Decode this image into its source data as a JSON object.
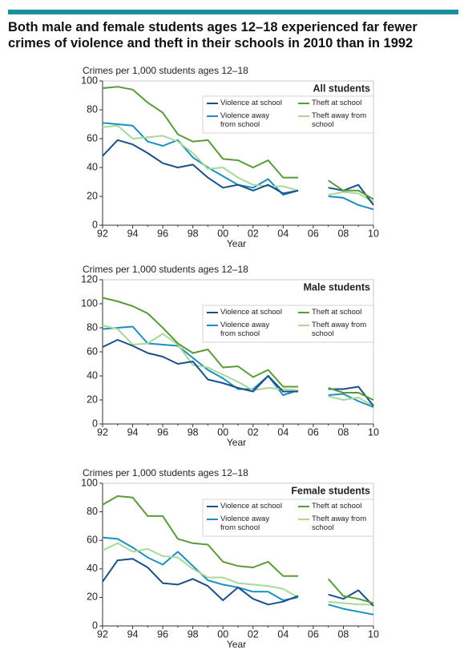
{
  "title": "Both male and female students ages 12–18 experienced far fewer crimes of violence and theft in their schools in 2010 than in 1992",
  "chart_data": [
    {
      "type": "line",
      "title": "All students",
      "ylabel": "Crimes per 1,000 students ages 12–18",
      "xlabel": "Year",
      "x": [
        1992,
        1993,
        1994,
        1995,
        1996,
        1997,
        1998,
        1999,
        2000,
        2001,
        2002,
        2003,
        2004,
        2005,
        2006,
        2007,
        2008,
        2009,
        2010
      ],
      "xlim": [
        1992,
        2010
      ],
      "xticks": [
        {
          "value": 1992,
          "label": "92"
        },
        {
          "value": 1994,
          "label": "94"
        },
        {
          "value": 1996,
          "label": "96"
        },
        {
          "value": 1998,
          "label": "98"
        },
        {
          "value": 2000,
          "label": "00"
        },
        {
          "value": 2002,
          "label": "02"
        },
        {
          "value": 2004,
          "label": "04"
        },
        {
          "value": 2006,
          "label": "06"
        },
        {
          "value": 2008,
          "label": "08"
        },
        {
          "value": 2010,
          "label": "10"
        }
      ],
      "ylim": [
        0,
        100
      ],
      "yticks": [
        0,
        20,
        40,
        60,
        80,
        100
      ],
      "grid": false,
      "series": [
        {
          "name": "Violence at school",
          "color": "#1b4f8a",
          "values": [
            48,
            59,
            56,
            50,
            43,
            40,
            42,
            33,
            26,
            28,
            24,
            28,
            22,
            24,
            null,
            26,
            24,
            28,
            14
          ]
        },
        {
          "name": "Theft at school",
          "color": "#5a9a3a",
          "values": [
            95,
            96,
            94,
            85,
            78,
            63,
            58,
            59,
            46,
            45,
            40,
            45,
            33,
            33,
            null,
            31,
            24,
            24,
            18
          ]
        },
        {
          "name": "Violence away from school",
          "color": "#1a8fc0",
          "values": [
            71,
            70,
            69,
            58,
            55,
            59,
            47,
            40,
            34,
            28,
            26,
            32,
            21,
            24,
            null,
            20,
            19,
            14,
            11
          ]
        },
        {
          "name": "Theft away from school",
          "color": "#a8d89a",
          "values": [
            68,
            69,
            60,
            61,
            62,
            58,
            50,
            39,
            40,
            33,
            28,
            27,
            27,
            24,
            null,
            21,
            23,
            22,
            16
          ]
        }
      ]
    },
    {
      "type": "line",
      "title": "Male students",
      "ylabel": "Crimes per 1,000 students ages 12–18",
      "xlabel": "Year",
      "x": [
        1992,
        1993,
        1994,
        1995,
        1996,
        1997,
        1998,
        1999,
        2000,
        2001,
        2002,
        2003,
        2004,
        2005,
        2006,
        2007,
        2008,
        2009,
        2010
      ],
      "xlim": [
        1992,
        2010
      ],
      "xticks": [
        {
          "value": 1992,
          "label": "92"
        },
        {
          "value": 1994,
          "label": "94"
        },
        {
          "value": 1996,
          "label": "96"
        },
        {
          "value": 1998,
          "label": "98"
        },
        {
          "value": 2000,
          "label": "00"
        },
        {
          "value": 2002,
          "label": "02"
        },
        {
          "value": 2004,
          "label": "04"
        },
        {
          "value": 2006,
          "label": "06"
        },
        {
          "value": 2008,
          "label": "08"
        },
        {
          "value": 2010,
          "label": "10"
        }
      ],
      "ylim": [
        0,
        120
      ],
      "yticks": [
        0,
        20,
        40,
        60,
        80,
        100,
        120
      ],
      "grid": false,
      "series": [
        {
          "name": "Violence at school",
          "color": "#1b4f8a",
          "values": [
            64,
            70,
            65,
            59,
            56,
            50,
            52,
            37,
            34,
            30,
            27,
            40,
            27,
            27,
            null,
            29,
            29,
            31,
            15
          ]
        },
        {
          "name": "Theft at school",
          "color": "#5a9a3a",
          "values": [
            105,
            102,
            98,
            92,
            80,
            67,
            59,
            62,
            47,
            48,
            39,
            45,
            31,
            31,
            null,
            30,
            26,
            26,
            20
          ]
        },
        {
          "name": "Violence away from school",
          "color": "#1a8fc0",
          "values": [
            79,
            80,
            81,
            67,
            66,
            65,
            55,
            45,
            38,
            29,
            29,
            40,
            24,
            28,
            null,
            24,
            25,
            19,
            14
          ]
        },
        {
          "name": "Theft away from school",
          "color": "#a8d89a",
          "values": [
            82,
            79,
            66,
            67,
            75,
            66,
            49,
            47,
            41,
            35,
            28,
            30,
            29,
            28,
            null,
            23,
            20,
            22,
            15
          ]
        }
      ]
    },
    {
      "type": "line",
      "title": "Female students",
      "ylabel": "Crimes per 1,000 students ages 12–18",
      "xlabel": "Year",
      "x": [
        1992,
        1993,
        1994,
        1995,
        1996,
        1997,
        1998,
        1999,
        2000,
        2001,
        2002,
        2003,
        2004,
        2005,
        2006,
        2007,
        2008,
        2009,
        2010
      ],
      "xlim": [
        1992,
        2010
      ],
      "xticks": [
        {
          "value": 1992,
          "label": "92"
        },
        {
          "value": 1994,
          "label": "94"
        },
        {
          "value": 1996,
          "label": "96"
        },
        {
          "value": 1998,
          "label": "98"
        },
        {
          "value": 2000,
          "label": "00"
        },
        {
          "value": 2002,
          "label": "02"
        },
        {
          "value": 2004,
          "label": "04"
        },
        {
          "value": 2006,
          "label": "06"
        },
        {
          "value": 2008,
          "label": "08"
        },
        {
          "value": 2010,
          "label": "10"
        }
      ],
      "ylim": [
        0,
        100
      ],
      "yticks": [
        0,
        20,
        40,
        60,
        80,
        100
      ],
      "grid": false,
      "series": [
        {
          "name": "Violence at school",
          "color": "#1b4f8a",
          "values": [
            31,
            46,
            47,
            41,
            30,
            29,
            33,
            28,
            18,
            27,
            19,
            15,
            17,
            21,
            null,
            22,
            19,
            25,
            14
          ]
        },
        {
          "name": "Theft at school",
          "color": "#5a9a3a",
          "values": [
            85,
            91,
            90,
            77,
            77,
            61,
            58,
            57,
            45,
            42,
            41,
            45,
            35,
            35,
            null,
            33,
            21,
            19,
            16
          ]
        },
        {
          "name": "Violence away from school",
          "color": "#1a8fc0",
          "values": [
            62,
            61,
            55,
            48,
            43,
            52,
            42,
            32,
            29,
            27,
            24,
            24,
            18,
            20,
            null,
            15,
            12,
            10,
            8
          ]
        },
        {
          "name": "Theft away from school",
          "color": "#a8d89a",
          "values": [
            53,
            58,
            52,
            54,
            49,
            48,
            40,
            34,
            34,
            30,
            29,
            28,
            26,
            20,
            null,
            17,
            16,
            15,
            15
          ]
        }
      ]
    }
  ]
}
